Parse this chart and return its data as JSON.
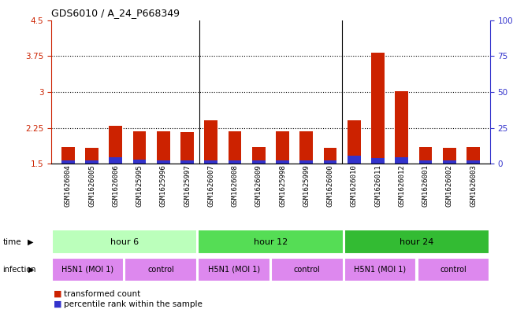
{
  "title": "GDS6010 / A_24_P668349",
  "samples": [
    "GSM1626004",
    "GSM1626005",
    "GSM1626006",
    "GSM1625995",
    "GSM1625996",
    "GSM1625997",
    "GSM1626007",
    "GSM1626008",
    "GSM1626009",
    "GSM1625998",
    "GSM1625999",
    "GSM1626000",
    "GSM1626010",
    "GSM1626011",
    "GSM1626012",
    "GSM1626001",
    "GSM1626002",
    "GSM1626003"
  ],
  "red_values": [
    1.85,
    1.83,
    2.3,
    2.18,
    2.17,
    2.16,
    2.4,
    2.18,
    1.85,
    2.17,
    2.18,
    1.83,
    2.4,
    3.82,
    3.02,
    1.85,
    1.83,
    1.85
  ],
  "blue_values": [
    1.565,
    1.565,
    1.64,
    1.595,
    1.565,
    1.565,
    1.565,
    1.565,
    1.565,
    1.565,
    1.565,
    1.565,
    1.67,
    1.62,
    1.63,
    1.565,
    1.565,
    1.565
  ],
  "ylim_left": [
    1.5,
    4.5
  ],
  "ylim_right": [
    0,
    100
  ],
  "yticks_left": [
    1.5,
    2.25,
    3.0,
    3.75,
    4.5
  ],
  "yticks_right": [
    0,
    25,
    50,
    75,
    100
  ],
  "ytick_labels_left": [
    "1.5",
    "2.25",
    "3",
    "3.75",
    "4.5"
  ],
  "ytick_labels_right": [
    "0",
    "25",
    "50",
    "75",
    "100%"
  ],
  "grid_lines": [
    2.25,
    3.0,
    3.75
  ],
  "bar_width": 0.55,
  "red_color": "#cc2200",
  "blue_color": "#3333cc"
}
